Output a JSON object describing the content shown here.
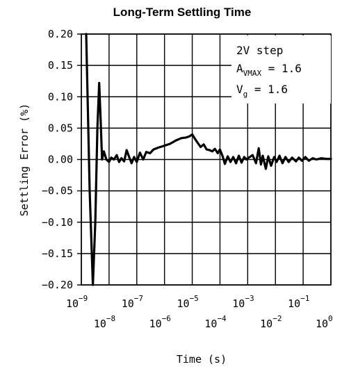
{
  "chart_data": {
    "type": "line",
    "title": "Long-Term Settling Time",
    "xlabel": "Time (s)",
    "ylabel": "Settling Error (%)",
    "x_scale": "log",
    "xlim": [
      1e-09,
      1
    ],
    "ylim": [
      -0.2,
      0.2
    ],
    "grid": true,
    "y_ticks": [
      0.2,
      0.15,
      0.1,
      0.05,
      0.0,
      -0.05,
      -0.1,
      -0.15,
      -0.2
    ],
    "y_tick_labels": [
      "0.20",
      "0.15",
      "0.10",
      "0.05",
      "0.00",
      "-0.05",
      "-0.10",
      "-0.15",
      "-0.20"
    ],
    "x_ticks": [
      {
        "value": 1e-09,
        "base": "10",
        "exp": "-9",
        "row": 1
      },
      {
        "value": 1e-08,
        "base": "10",
        "exp": "-8",
        "row": 2
      },
      {
        "value": 1e-07,
        "base": "10",
        "exp": "-7",
        "row": 1
      },
      {
        "value": 1e-06,
        "base": "10",
        "exp": "-6",
        "row": 2
      },
      {
        "value": 1e-05,
        "base": "10",
        "exp": "-5",
        "row": 1
      },
      {
        "value": 0.0001,
        "base": "10",
        "exp": "-4",
        "row": 2
      },
      {
        "value": 0.001,
        "base": "10",
        "exp": "-3",
        "row": 1
      },
      {
        "value": 0.01,
        "base": "10",
        "exp": "-2",
        "row": 2
      },
      {
        "value": 0.1,
        "base": "10",
        "exp": "-1",
        "row": 1
      },
      {
        "value": 1,
        "base": "10",
        "exp": "0",
        "row": 2
      }
    ],
    "annotations": [
      {
        "text": "2V step"
      },
      {
        "text": "A",
        "sub": "VMAX",
        "suffix": " = 1.6"
      },
      {
        "text": "V",
        "sub": "g",
        "suffix": " = 1.6"
      }
    ],
    "series": [
      {
        "color": "#000000",
        "points": [
          [
            1.5e-09,
            0.205
          ],
          [
            2e-09,
            -0.05
          ],
          [
            2.6e-09,
            -0.205
          ],
          [
            3.2e-09,
            -0.1
          ],
          [
            3.8e-09,
            0.05
          ],
          [
            4.4e-09,
            0.122
          ],
          [
            5e-09,
            0.06
          ],
          [
            5.6e-09,
            0.0
          ],
          [
            6.5e-09,
            0.013
          ],
          [
            8e-09,
            0.0
          ],
          [
            1e-08,
            -0.004
          ],
          [
            1.2e-08,
            0.003
          ],
          [
            1.5e-08,
            0.0
          ],
          [
            1.9e-08,
            0.007
          ],
          [
            2.3e-08,
            -0.004
          ],
          [
            2.8e-08,
            0.002
          ],
          [
            3.5e-08,
            -0.003
          ],
          [
            4.3e-08,
            0.015
          ],
          [
            5.3e-08,
            0.004
          ],
          [
            6.5e-08,
            -0.006
          ],
          [
            8e-08,
            0.004
          ],
          [
            1e-07,
            -0.004
          ],
          [
            1.3e-07,
            0.011
          ],
          [
            1.7e-07,
            0.0
          ],
          [
            2.2e-07,
            0.012
          ],
          [
            3e-07,
            0.01
          ],
          [
            4e-07,
            0.016
          ],
          [
            6e-07,
            0.019
          ],
          [
            1e-06,
            0.022
          ],
          [
            1.6e-06,
            0.025
          ],
          [
            2.5e-06,
            0.03
          ],
          [
            4e-06,
            0.034
          ],
          [
            6e-06,
            0.035
          ],
          [
            8e-06,
            0.037
          ],
          [
            1e-05,
            0.04
          ],
          [
            1.25e-05,
            0.033
          ],
          [
            1.6e-05,
            0.026
          ],
          [
            2e-05,
            0.02
          ],
          [
            2.6e-05,
            0.024
          ],
          [
            3.3e-05,
            0.016
          ],
          [
            4.2e-05,
            0.015
          ],
          [
            5.3e-05,
            0.013
          ],
          [
            6.6e-05,
            0.017
          ],
          [
            8.3e-05,
            0.01
          ],
          [
            0.0001,
            0.016
          ],
          [
            0.000125,
            0.005
          ],
          [
            0.00015,
            -0.007
          ],
          [
            0.00019,
            0.005
          ],
          [
            0.00024,
            -0.004
          ],
          [
            0.0003,
            0.004
          ],
          [
            0.00038,
            -0.006
          ],
          [
            0.00048,
            0.006
          ],
          [
            0.0006,
            -0.005
          ],
          [
            0.00075,
            0.004
          ],
          [
            0.0009,
            0.0
          ],
          [
            0.0011,
            0.003
          ],
          [
            0.0015,
            0.007
          ],
          [
            0.002,
            -0.006
          ],
          [
            0.0025,
            0.018
          ],
          [
            0.003,
            -0.008
          ],
          [
            0.0035,
            0.006
          ],
          [
            0.0045,
            -0.015
          ],
          [
            0.0055,
            0.005
          ],
          [
            0.007,
            -0.01
          ],
          [
            0.009,
            0.004
          ],
          [
            0.011,
            -0.004
          ],
          [
            0.014,
            0.006
          ],
          [
            0.018,
            -0.006
          ],
          [
            0.023,
            0.004
          ],
          [
            0.03,
            -0.004
          ],
          [
            0.04,
            0.003
          ],
          [
            0.055,
            -0.003
          ],
          [
            0.07,
            0.003
          ],
          [
            0.09,
            -0.002
          ],
          [
            0.12,
            0.004
          ],
          [
            0.16,
            -0.002
          ],
          [
            0.22,
            0.002
          ],
          [
            0.3,
            0.0
          ],
          [
            0.45,
            0.002
          ],
          [
            0.65,
            0.001
          ],
          [
            1.0,
            0.001
          ]
        ]
      }
    ]
  }
}
